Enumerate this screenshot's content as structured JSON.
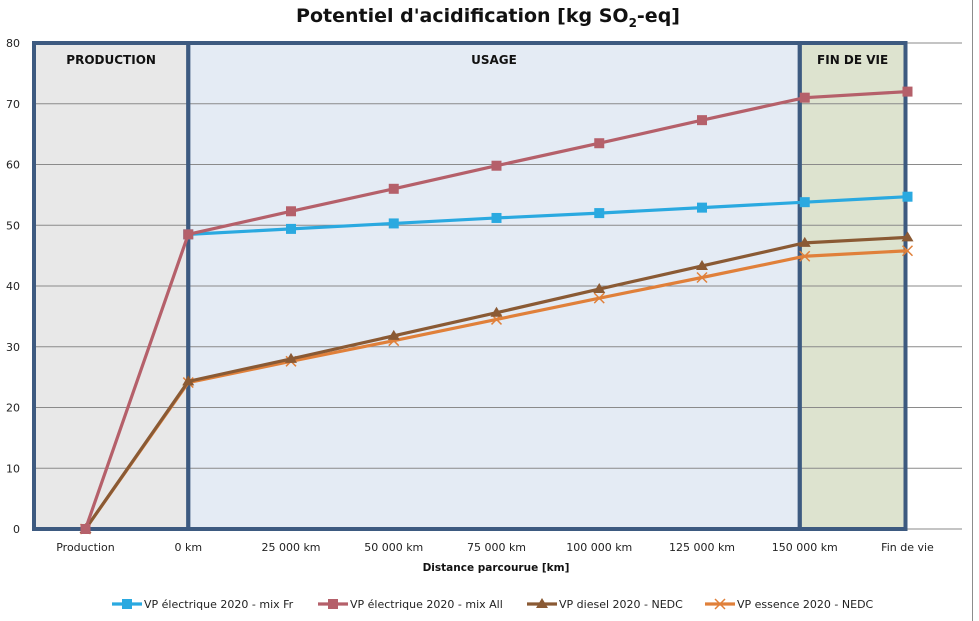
{
  "chart_data": {
    "type": "line",
    "title": "Potentiel d'acidification [kg SO2-eq]",
    "title_parts": {
      "main": "Potentiel d'acidification [kg SO",
      "subscript": "2",
      "suffix": "-eq]"
    },
    "xlabel": "Distance parcourue [km]",
    "ylabel": "",
    "ylim": [
      0,
      80
    ],
    "yticks": [
      0,
      10,
      20,
      30,
      40,
      50,
      60,
      70,
      80
    ],
    "grid": true,
    "legend_position": "bottom",
    "categories": [
      "Production",
      "0 km",
      "25 000 km",
      "50 000 km",
      "75 000 km",
      "100 000 km",
      "125 000 km",
      "150 000 km",
      "Fin de vie"
    ],
    "zones": [
      {
        "label": "PRODUCTION",
        "from": 0,
        "to": 1,
        "color": "#e8e8e8"
      },
      {
        "label": "USAGE",
        "from": 1,
        "to": 7,
        "color": "#e4ebf4"
      },
      {
        "label": "FIN DE VIE",
        "from": 7,
        "to": 8,
        "color": "#dde3cf"
      }
    ],
    "zone_border_color": "#3d5a80",
    "series": [
      {
        "name": "VP électrique 2020 - mix Fr",
        "color": "#2aa9e0",
        "marker": "square",
        "values": [
          null,
          48.5,
          49.4,
          50.3,
          51.2,
          52.0,
          52.9,
          53.8,
          54.7
        ]
      },
      {
        "name": "VP électrique 2020 - mix All",
        "color": "#b5606a",
        "marker": "square",
        "values": [
          0,
          48.5,
          52.3,
          56.0,
          59.8,
          63.5,
          67.3,
          71.0,
          72.0
        ]
      },
      {
        "name": "VP diesel 2020 - NEDC",
        "color": "#8a5a34",
        "marker": "triangle",
        "values": [
          0,
          24.3,
          28.0,
          31.8,
          35.6,
          39.5,
          43.3,
          47.1,
          48.0
        ]
      },
      {
        "name": "VP essence 2020 - NEDC",
        "color": "#e0803a",
        "marker": "x",
        "values": [
          0,
          24.1,
          27.6,
          31.0,
          34.5,
          38.0,
          41.4,
          44.9,
          45.8
        ]
      }
    ]
  }
}
